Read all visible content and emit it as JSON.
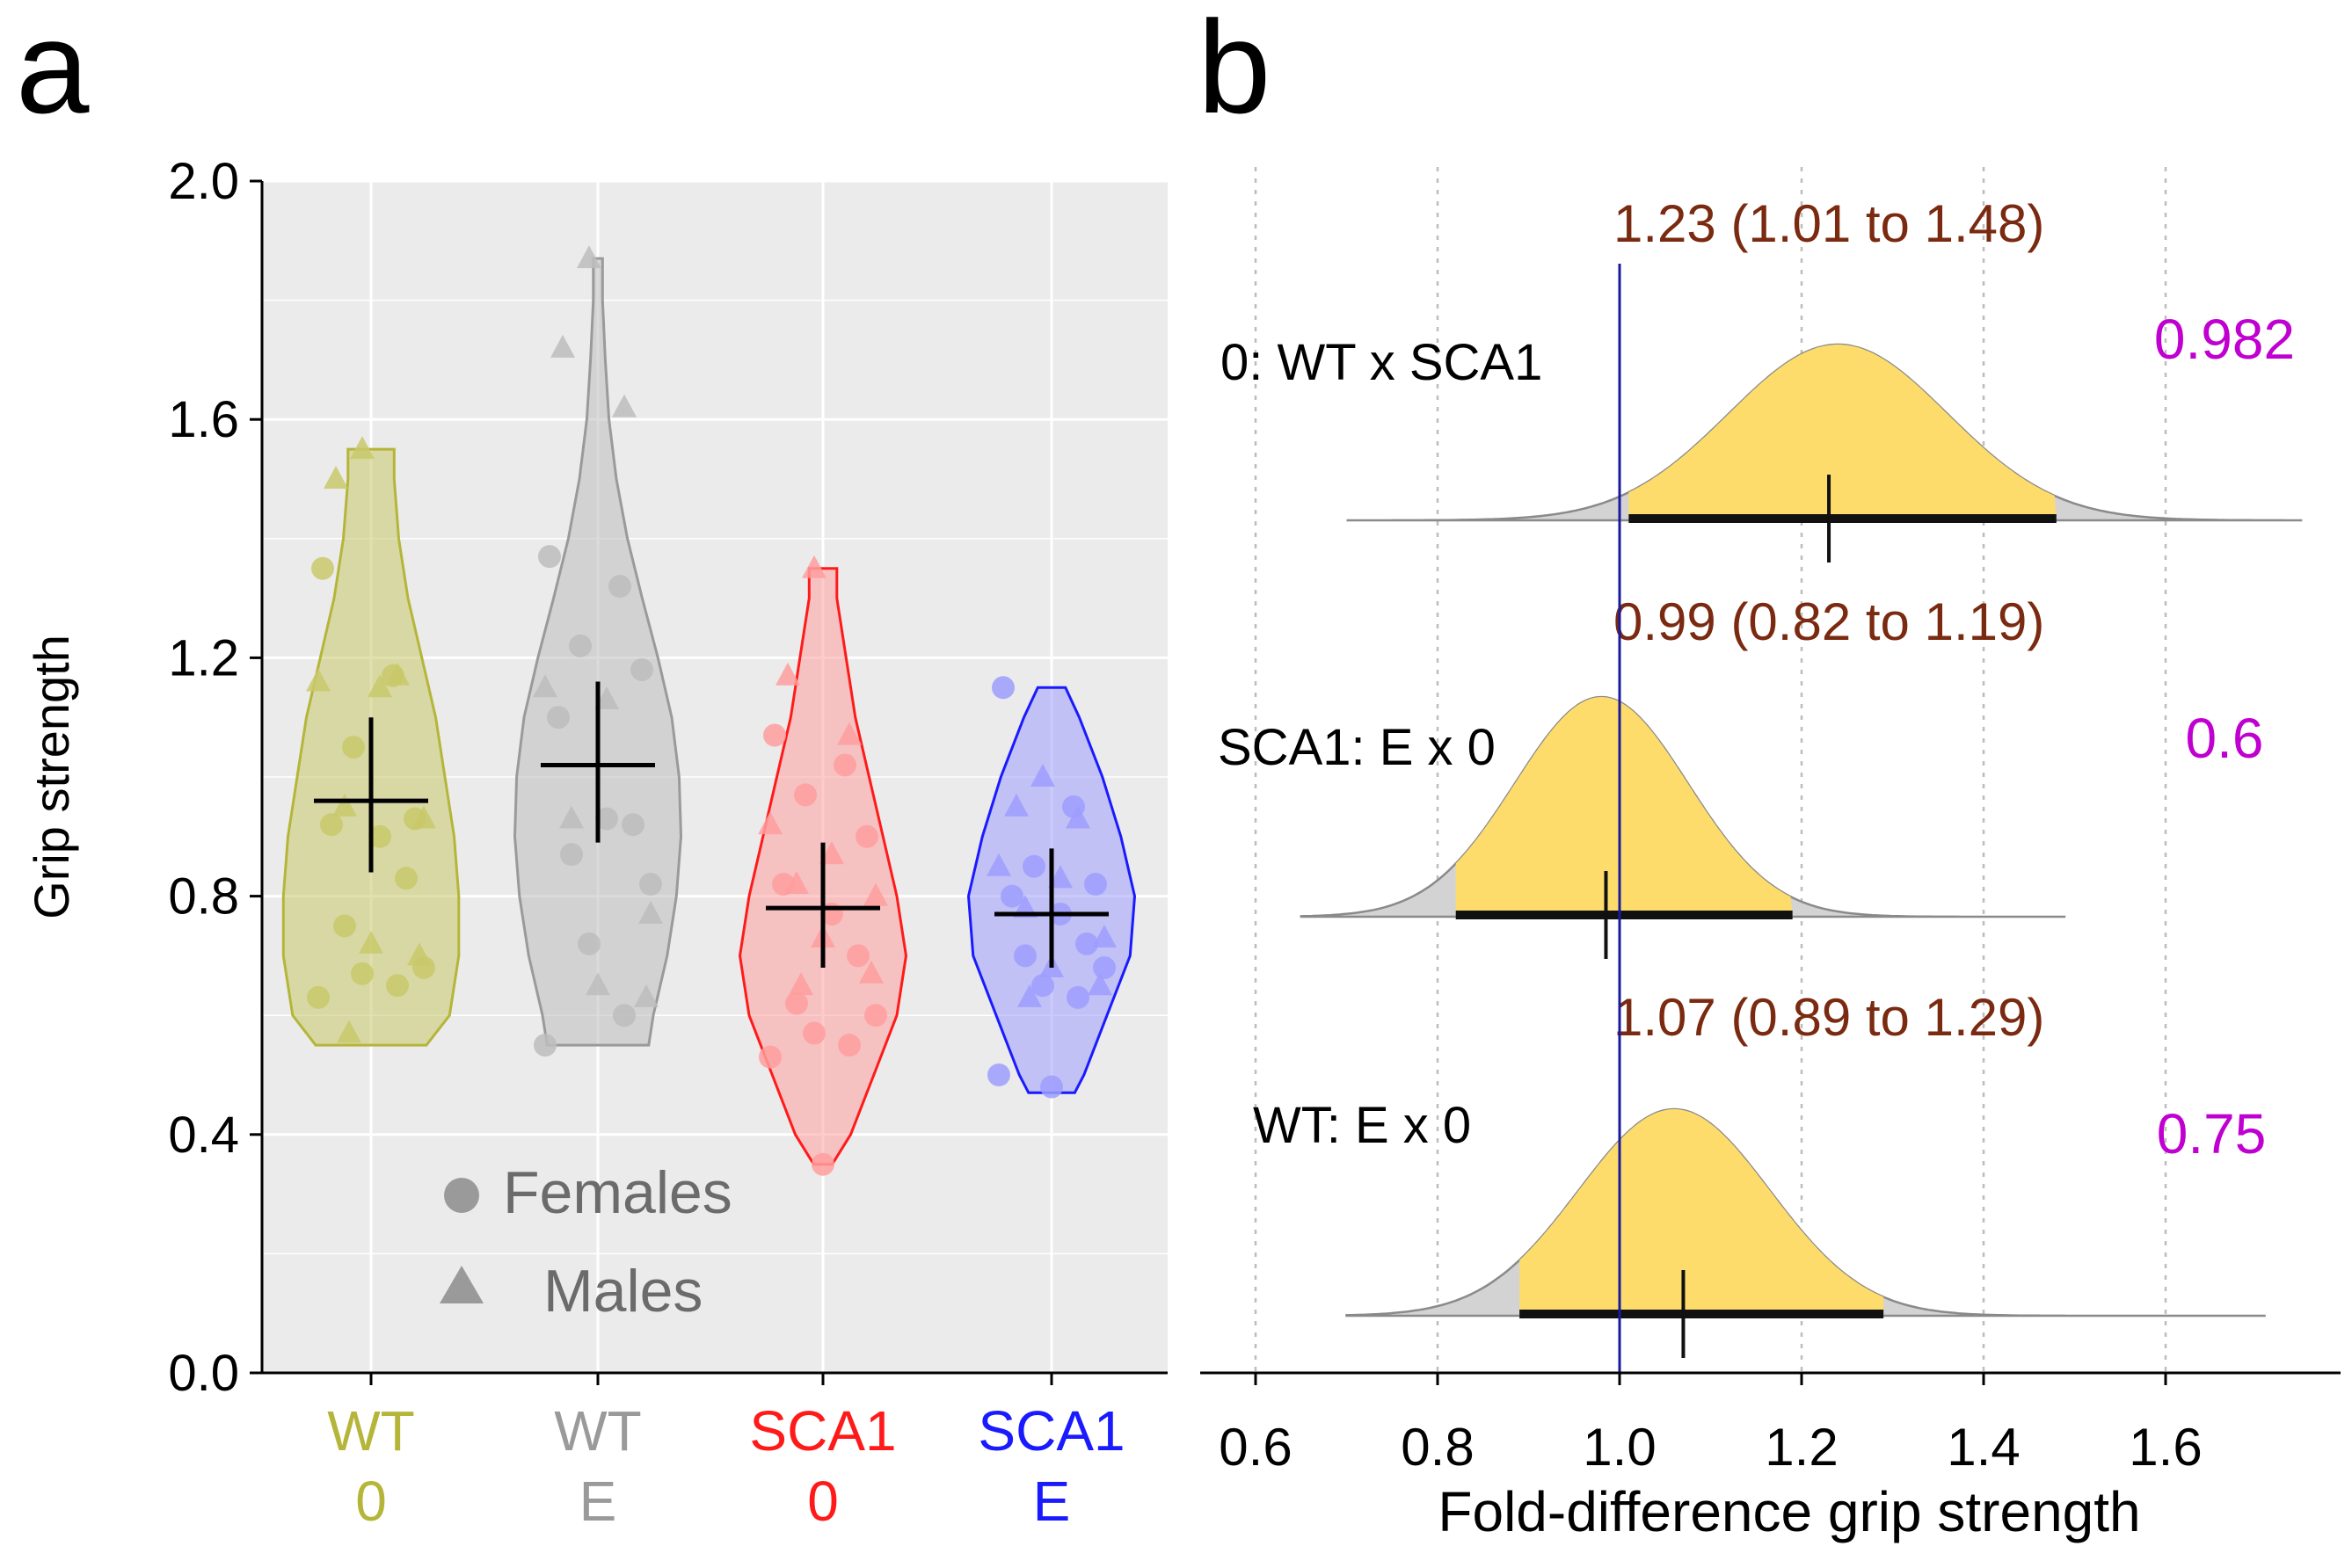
{
  "chart_data": [
    {
      "panel_label": "a",
      "type": "violin",
      "ylabel": "Grip strength",
      "ylim": [
        0,
        2.0
      ],
      "yticks": [
        "0.0",
        "0.4",
        "0.8",
        "1.2",
        "1.6",
        "2.0"
      ],
      "grid": true,
      "legend": {
        "position": "bottom-center",
        "entries": [
          {
            "shape": "circle",
            "label": "Females"
          },
          {
            "shape": "triangle",
            "label": "Males"
          }
        ]
      },
      "groups": [
        {
          "line1": "WT",
          "line2": "0",
          "color": "#b5b53a",
          "fill": "#c9c96b",
          "mean": 0.96,
          "ci": [
            0.84,
            1.1
          ],
          "range": [
            0.55,
            1.55
          ],
          "widths": [
            [
              0.55,
              0.6
            ],
            [
              0.6,
              0.85
            ],
            [
              0.7,
              0.95
            ],
            [
              0.8,
              0.95
            ],
            [
              0.9,
              0.9
            ],
            [
              1.0,
              0.8
            ],
            [
              1.1,
              0.7
            ],
            [
              1.2,
              0.55
            ],
            [
              1.3,
              0.4
            ],
            [
              1.4,
              0.3
            ],
            [
              1.5,
              0.25
            ],
            [
              1.55,
              0.25
            ]
          ],
          "females": [
            1.35,
            1.17,
            1.05,
            0.93,
            0.92,
            0.9,
            0.83,
            0.75,
            0.68,
            0.67,
            0.65,
            0.63
          ],
          "males": [
            1.55,
            1.5,
            1.17,
            1.16,
            1.15,
            0.95,
            0.93,
            0.72,
            0.7,
            0.57
          ]
        },
        {
          "line1": "WT",
          "line2": "E",
          "color": "#9a9a9a",
          "fill": "#bdbdbd",
          "mean": 1.02,
          "ci": [
            0.89,
            1.16
          ],
          "range": [
            0.55,
            1.87
          ],
          "widths": [
            [
              0.55,
              0.55
            ],
            [
              0.6,
              0.6
            ],
            [
              0.7,
              0.75
            ],
            [
              0.8,
              0.85
            ],
            [
              0.9,
              0.9
            ],
            [
              1.0,
              0.88
            ],
            [
              1.1,
              0.8
            ],
            [
              1.2,
              0.65
            ],
            [
              1.3,
              0.48
            ],
            [
              1.4,
              0.32
            ],
            [
              1.5,
              0.2
            ],
            [
              1.6,
              0.12
            ],
            [
              1.7,
              0.08
            ],
            [
              1.8,
              0.05
            ],
            [
              1.87,
              0.05
            ]
          ],
          "females": [
            1.37,
            1.32,
            1.22,
            1.18,
            1.1,
            0.93,
            0.92,
            0.87,
            0.82,
            0.72,
            0.6,
            0.55
          ],
          "males": [
            1.87,
            1.72,
            1.62,
            1.15,
            1.13,
            0.93,
            0.77,
            0.65,
            0.63
          ]
        },
        {
          "line1": "SCA1",
          "line2": "0",
          "color": "#ff1a1a",
          "fill": "#ff9e9e",
          "mean": 0.78,
          "ci": [
            0.68,
            0.89
          ],
          "range": [
            0.35,
            1.35
          ],
          "widths": [
            [
              0.35,
              0.1
            ],
            [
              0.4,
              0.3
            ],
            [
              0.5,
              0.55
            ],
            [
              0.6,
              0.8
            ],
            [
              0.7,
              0.9
            ],
            [
              0.8,
              0.8
            ],
            [
              0.9,
              0.65
            ],
            [
              1.0,
              0.5
            ],
            [
              1.1,
              0.35
            ],
            [
              1.2,
              0.25
            ],
            [
              1.3,
              0.15
            ],
            [
              1.35,
              0.15
            ]
          ],
          "females": [
            1.07,
            1.02,
            0.97,
            0.9,
            0.82,
            0.77,
            0.7,
            0.62,
            0.6,
            0.57,
            0.55,
            0.53,
            0.35
          ],
          "males": [
            1.35,
            1.17,
            1.07,
            0.92,
            0.87,
            0.82,
            0.8,
            0.73,
            0.67,
            0.65
          ]
        },
        {
          "line1": "SCA1",
          "line2": "E",
          "color": "#1a1aff",
          "fill": "#9e9eff",
          "mean": 0.77,
          "ci": [
            0.68,
            0.88
          ],
          "range": [
            0.47,
            1.15
          ],
          "widths": [
            [
              0.47,
              0.25
            ],
            [
              0.5,
              0.35
            ],
            [
              0.6,
              0.6
            ],
            [
              0.7,
              0.85
            ],
            [
              0.8,
              0.9
            ],
            [
              0.9,
              0.75
            ],
            [
              1.0,
              0.55
            ],
            [
              1.1,
              0.3
            ],
            [
              1.15,
              0.15
            ]
          ],
          "females": [
            1.15,
            0.95,
            0.85,
            0.82,
            0.8,
            0.77,
            0.72,
            0.7,
            0.68,
            0.65,
            0.63,
            0.5,
            0.48
          ],
          "males": [
            1.0,
            0.95,
            0.93,
            0.85,
            0.83,
            0.78,
            0.73,
            0.68,
            0.65,
            0.63
          ]
        }
      ]
    },
    {
      "panel_label": "b",
      "type": "posterior-density",
      "xlabel": "Fold-difference grip strength",
      "xlim": [
        0.5,
        1.78
      ],
      "xticks": [
        "0.6",
        "0.8",
        "1.0",
        "1.2",
        "1.4",
        "1.6"
      ],
      "reference_line": 1.0,
      "rows": [
        {
          "label": "0: WT x SCA1",
          "estimate_text": "1.23 (1.01 to 1.48)",
          "probability": "0.982",
          "point": 1.23,
          "ci": [
            1.01,
            1.48
          ],
          "support": [
            0.7,
            1.75
          ],
          "peak": 1.24,
          "sd": 0.12
        },
        {
          "label": "SCA1: E x 0",
          "estimate_text": "0.99 (0.82 to 1.19)",
          "probability": "0.6",
          "point": 0.985,
          "ci": [
            0.82,
            1.19
          ],
          "support": [
            0.65,
            1.49
          ],
          "peak": 0.98,
          "sd": 0.095
        },
        {
          "label": "WT: E x 0",
          "estimate_text": "1.07 (0.89 to 1.29)",
          "probability": "0.75",
          "point": 1.07,
          "ci": [
            0.89,
            1.29
          ],
          "support": [
            0.7,
            1.71
          ],
          "peak": 1.06,
          "sd": 0.105
        }
      ]
    }
  ]
}
